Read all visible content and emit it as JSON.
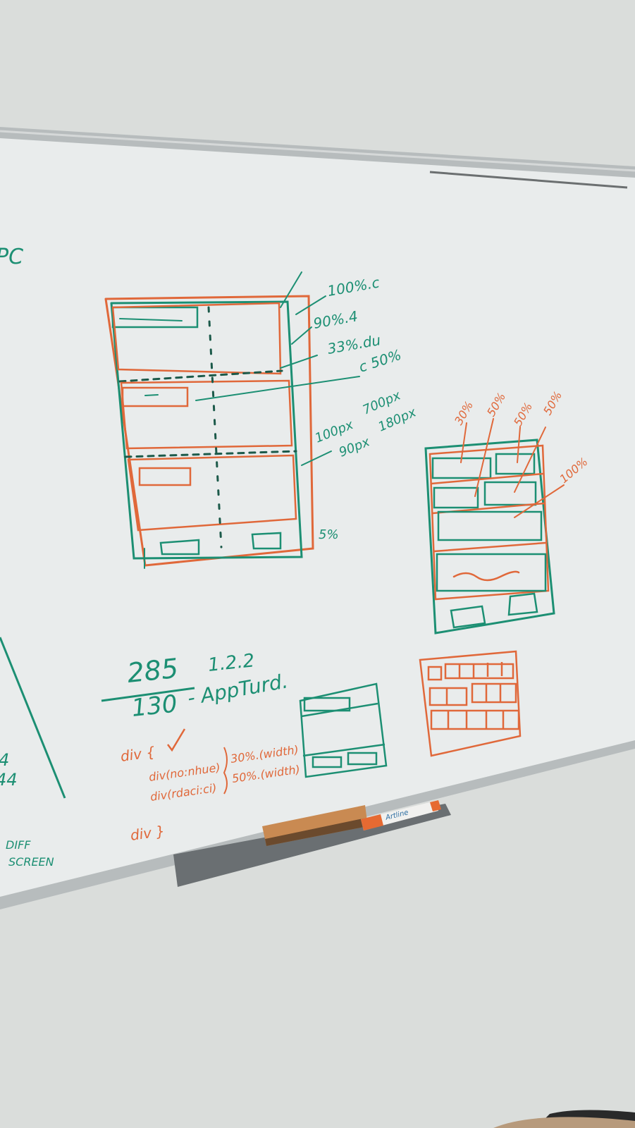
{
  "photo": {
    "subject": "whiteboard with hand-drawn layout sketches",
    "colors": {
      "wall": "#d9dcd9",
      "board": "#e9ecec",
      "frame": "#b9bebf",
      "marker_green": "#1c8f73",
      "marker_orange": "#e0683a",
      "eraser": "#c98a52"
    }
  },
  "left_edge": {
    "top_text": "PC",
    "numbers_top": "4",
    "numbers_bottom": "44",
    "note_line1": "DIFF",
    "note_line2": "SCREEN"
  },
  "wireframe_main": {
    "labels": {
      "outer": "100%.c",
      "inner": "90%.4",
      "column": "33%.du",
      "half": "c 50%",
      "height_a": "100px",
      "height_b": "90px",
      "height_c": "700px",
      "height_d": "180px",
      "footer": "5%"
    }
  },
  "wireframe_right": {
    "labels": {
      "a": "30%",
      "b": "50%",
      "c": "50%",
      "d": "50%",
      "e": "100%"
    }
  },
  "equation": {
    "numerator": "285",
    "version": "1.2.2",
    "denominator": "130",
    "app_name": "- AppTurd."
  },
  "code": {
    "line1": "div {",
    "line2a": "div(no:nhue)",
    "line2b": "30%.(width)",
    "line3a": "div(rdaci:ci)",
    "line3b": "50%.(width)",
    "line4": "div }"
  },
  "marker": {
    "label": "Artline"
  }
}
